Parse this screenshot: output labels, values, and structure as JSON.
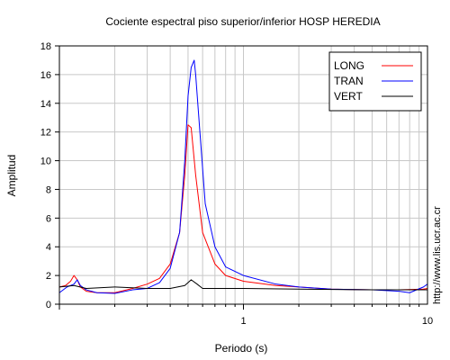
{
  "chart_data": {
    "type": "line",
    "title": "Cociente espectral piso superior/inferior  HOSP HEREDIA",
    "xlabel": "Periodo (s)",
    "ylabel": "Amplitud",
    "xscale": "log",
    "xlim": [
      0.1,
      10
    ],
    "ylim": [
      0,
      18
    ],
    "xticks": [
      1,
      10
    ],
    "xtick_labels": [
      "1",
      "10"
    ],
    "yticks": [
      0,
      2,
      4,
      6,
      8,
      10,
      12,
      14,
      16,
      18
    ],
    "ytick_labels": [
      "0",
      "2",
      "4",
      "6",
      "8",
      "10",
      "12",
      "14",
      "16",
      "18"
    ],
    "grid": true,
    "legend_position": "top-right",
    "side_text": "http://www.lis.ucr.ac.cr",
    "series": [
      {
        "name": "LONG",
        "color": "#ff0000",
        "points": [
          [
            0.1,
            1.2
          ],
          [
            0.108,
            1.3
          ],
          [
            0.115,
            1.6
          ],
          [
            0.12,
            2.0
          ],
          [
            0.125,
            1.7
          ],
          [
            0.13,
            1.2
          ],
          [
            0.14,
            0.9
          ],
          [
            0.16,
            0.8
          ],
          [
            0.2,
            0.8
          ],
          [
            0.25,
            1.1
          ],
          [
            0.3,
            1.4
          ],
          [
            0.35,
            1.8
          ],
          [
            0.4,
            2.8
          ],
          [
            0.45,
            5.0
          ],
          [
            0.48,
            9.0
          ],
          [
            0.5,
            12.5
          ],
          [
            0.52,
            12.3
          ],
          [
            0.55,
            9.0
          ],
          [
            0.6,
            5.0
          ],
          [
            0.7,
            2.8
          ],
          [
            0.8,
            2.0
          ],
          [
            1.0,
            1.6
          ],
          [
            1.5,
            1.3
          ],
          [
            2.0,
            1.2
          ],
          [
            3.0,
            1.05
          ],
          [
            5.0,
            1.0
          ],
          [
            7.0,
            1.0
          ],
          [
            9.5,
            1.05
          ],
          [
            10,
            1.1
          ]
        ]
      },
      {
        "name": "TRAN",
        "color": "#0000ff",
        "points": [
          [
            0.1,
            0.8
          ],
          [
            0.11,
            1.2
          ],
          [
            0.12,
            1.4
          ],
          [
            0.125,
            1.7
          ],
          [
            0.13,
            1.3
          ],
          [
            0.14,
            1.0
          ],
          [
            0.16,
            0.8
          ],
          [
            0.2,
            0.75
          ],
          [
            0.25,
            1.0
          ],
          [
            0.3,
            1.1
          ],
          [
            0.35,
            1.5
          ],
          [
            0.4,
            2.5
          ],
          [
            0.45,
            5.0
          ],
          [
            0.48,
            10.0
          ],
          [
            0.5,
            14.5
          ],
          [
            0.52,
            16.5
          ],
          [
            0.54,
            17.0
          ],
          [
            0.55,
            16.0
          ],
          [
            0.58,
            12.0
          ],
          [
            0.62,
            7.0
          ],
          [
            0.7,
            4.0
          ],
          [
            0.8,
            2.6
          ],
          [
            1.0,
            2.0
          ],
          [
            1.5,
            1.4
          ],
          [
            2.0,
            1.2
          ],
          [
            3.0,
            1.05
          ],
          [
            5.0,
            1.0
          ],
          [
            7.0,
            0.9
          ],
          [
            8.0,
            0.8
          ],
          [
            9.5,
            1.2
          ],
          [
            10,
            1.4
          ]
        ]
      },
      {
        "name": "VERT",
        "color": "#000000",
        "points": [
          [
            0.1,
            1.2
          ],
          [
            0.12,
            1.3
          ],
          [
            0.14,
            1.1
          ],
          [
            0.2,
            1.2
          ],
          [
            0.3,
            1.1
          ],
          [
            0.4,
            1.1
          ],
          [
            0.48,
            1.3
          ],
          [
            0.52,
            1.7
          ],
          [
            0.56,
            1.4
          ],
          [
            0.6,
            1.1
          ],
          [
            0.7,
            1.1
          ],
          [
            1.0,
            1.1
          ],
          [
            2.0,
            1.05
          ],
          [
            5.0,
            1.0
          ],
          [
            10,
            1.0
          ]
        ]
      }
    ]
  }
}
